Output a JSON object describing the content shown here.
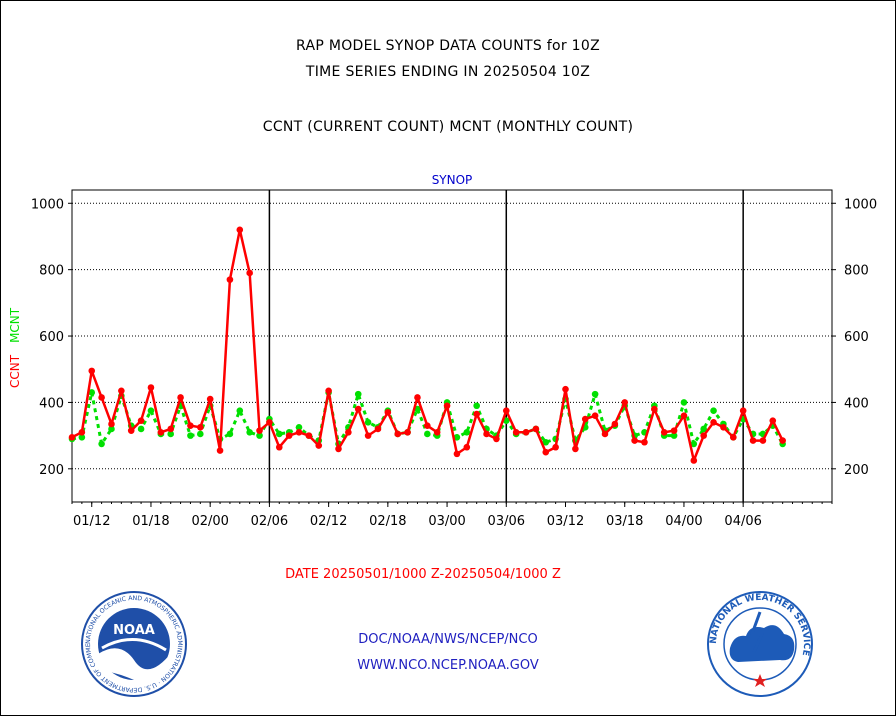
{
  "header": {
    "line1": "RAP MODEL SYNOP DATA COUNTS for 10Z",
    "line2": "TIME SERIES ENDING IN 20250504 10Z",
    "line3": "CCNT (CURRENT COUNT) MCNT (MONTHLY COUNT)"
  },
  "chart_data": {
    "type": "line",
    "title": "SYNOP",
    "ylabel_current": "CCNT",
    "ylabel_monthly": "MCNT",
    "xlabel": "DATE 20250501/1000 Z-20250504/1000 Z",
    "ylim": [
      100,
      1040
    ],
    "yticks": [
      200,
      400,
      600,
      800,
      1000
    ],
    "xlim": [
      0,
      77
    ],
    "xticks": [
      {
        "x": 2,
        "label": "01/12"
      },
      {
        "x": 8,
        "label": "01/18"
      },
      {
        "x": 14,
        "label": "02/00"
      },
      {
        "x": 20,
        "label": "02/06"
      },
      {
        "x": 26,
        "label": "02/12"
      },
      {
        "x": 32,
        "label": "02/18"
      },
      {
        "x": 38,
        "label": "03/00"
      },
      {
        "x": 44,
        "label": "03/06"
      },
      {
        "x": 50,
        "label": "03/12"
      },
      {
        "x": 56,
        "label": "03/18"
      },
      {
        "x": 62,
        "label": "04/00"
      },
      {
        "x": 68,
        "label": "04/06"
      }
    ],
    "day_lines": [
      20,
      44,
      68
    ],
    "grid": true,
    "series": [
      {
        "name": "CCNT",
        "color": "#ff0000",
        "values": [
          295,
          310,
          495,
          415,
          335,
          435,
          315,
          345,
          445,
          310,
          320,
          415,
          330,
          325,
          410,
          255,
          770,
          920,
          790,
          315,
          340,
          265,
          300,
          310,
          300,
          270,
          435,
          260,
          310,
          380,
          300,
          320,
          370,
          305,
          310,
          415,
          330,
          310,
          390,
          245,
          265,
          365,
          305,
          290,
          375,
          310,
          310,
          320,
          250,
          265,
          440,
          260,
          350,
          360,
          305,
          335,
          400,
          285,
          280,
          380,
          310,
          315,
          360,
          225,
          300,
          340,
          325,
          295,
          375,
          285,
          285,
          345,
          285
        ]
      },
      {
        "name": "MCNT",
        "color": "#00e000",
        "values": [
          290,
          295,
          430,
          275,
          320,
          420,
          330,
          320,
          375,
          305,
          305,
          390,
          300,
          305,
          390,
          290,
          305,
          375,
          310,
          300,
          350,
          305,
          310,
          325,
          300,
          285,
          430,
          275,
          325,
          425,
          340,
          325,
          375,
          305,
          310,
          380,
          305,
          300,
          400,
          295,
          310,
          390,
          320,
          300,
          345,
          305,
          310,
          320,
          280,
          290,
          410,
          285,
          325,
          425,
          315,
          330,
          390,
          300,
          310,
          390,
          300,
          300,
          400,
          275,
          320,
          375,
          335,
          295,
          350,
          305,
          305,
          330,
          275
        ]
      }
    ]
  },
  "footer": {
    "line1": "DOC/NOAA/NWS/NCEP/NCO",
    "line2": "WWW.NCO.NCEP.NOAA.GOV"
  },
  "logos": {
    "noaa_text": "NOAA",
    "noaa_ring": "NATIONAL OCEANIC AND ATMOSPHERIC ADMINISTRATION · U.S. DEPARTMENT OF COMMERCE",
    "nws_ring": "NATIONAL WEATHER SERVICE"
  },
  "colors": {
    "current": "#ff0000",
    "monthly": "#00e000",
    "label_blue": "#0000cc",
    "noaa_blue": "#1f4fa8",
    "nws_blue": "#1d5bb8"
  }
}
